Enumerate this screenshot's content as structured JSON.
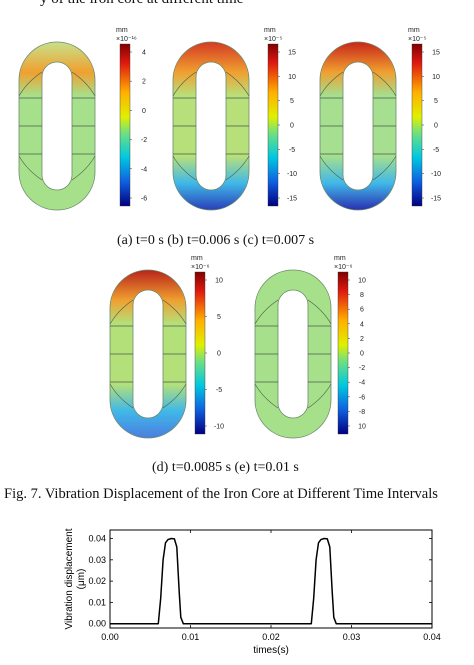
{
  "top_line": "y of the iron core at different time",
  "units": "mm",
  "cores": [
    {
      "id": "a",
      "scale": "×10⁻¹⁶",
      "ticks": [
        "4",
        "2",
        "0",
        "-2",
        "-4",
        "-6"
      ],
      "top_val": 0.05,
      "bot_val": 0.0,
      "top_color": "#c8e08a",
      "bot_color": "#7fd2d8",
      "body_color": "#a7e08a"
    },
    {
      "id": "b",
      "scale": "×10⁻⁵",
      "ticks": [
        "15",
        "10",
        "5",
        "0",
        "-5",
        "-10",
        "-15"
      ],
      "top_val": 1,
      "bot_val": 1,
      "top_color": "#d43a24",
      "bot_color": "#2a3fb8",
      "body_color": "#b8e07a"
    },
    {
      "id": "c",
      "scale": "×10⁻⁵",
      "ticks": [
        "15",
        "10",
        "5",
        "0",
        "-5",
        "-10",
        "-15"
      ],
      "top_val": 1,
      "bot_val": 1,
      "top_color": "#c8261a",
      "bot_color": "#2a2fb0",
      "body_color": "#a5df8f"
    },
    {
      "id": "d",
      "scale": "×10⁻⁶",
      "ticks": [
        "10",
        "5",
        "0",
        "-5",
        "-10"
      ],
      "top_val": 1,
      "bot_val": 1,
      "top_color": "#b8231a",
      "bot_color": "#4a7ee0",
      "body_color": "#b4e07a"
    },
    {
      "id": "e",
      "scale": "×10⁻⁶",
      "ticks": [
        "10",
        "8",
        "6",
        "4",
        "2",
        "0",
        "-2",
        "-4",
        "-6",
        "-8",
        "10"
      ],
      "top_val": 0,
      "bot_val": 0,
      "top_color": "#a6e08a",
      "bot_color": "#a6e08a",
      "body_color": "#a6e08a"
    }
  ],
  "captions_row1": "(a) t=0 s     (b) t=0.006 s   (c) t=0.007 s",
  "captions_row2": "(d) t=0.0085 s  (e) t=0.01 s",
  "fig7_caption": "Fig. 7.   Vibration Displacement of the Iron Core at Different Time Intervals",
  "chart_data": {
    "type": "line",
    "xlabel": "times(s)",
    "ylabel": "Vibration displacement (μm)",
    "xlim": [
      0.0,
      0.04
    ],
    "ylim": [
      -0.002,
      0.044
    ],
    "xticks": [
      "0.00",
      "0.01",
      "0.02",
      "0.03",
      "0.04"
    ],
    "yticks": [
      "0.00",
      "0.01",
      "0.02",
      "0.03",
      "0.04"
    ],
    "series": [
      {
        "x": [
          0.0,
          0.006,
          0.0063,
          0.0066,
          0.0069,
          0.0072,
          0.0076,
          0.008,
          0.0083,
          0.0086,
          0.0088,
          0.0091,
          0.025,
          0.0253,
          0.0256,
          0.0259,
          0.0262,
          0.0266,
          0.027,
          0.0273,
          0.0276,
          0.0278,
          0.0281,
          0.04
        ],
        "y": [
          0.0,
          0.0,
          0.012,
          0.03,
          0.038,
          0.0395,
          0.04,
          0.0398,
          0.036,
          0.015,
          0.003,
          0.0,
          0.0,
          0.012,
          0.03,
          0.038,
          0.0395,
          0.04,
          0.0398,
          0.036,
          0.015,
          0.003,
          0.0,
          0.0
        ]
      }
    ]
  }
}
